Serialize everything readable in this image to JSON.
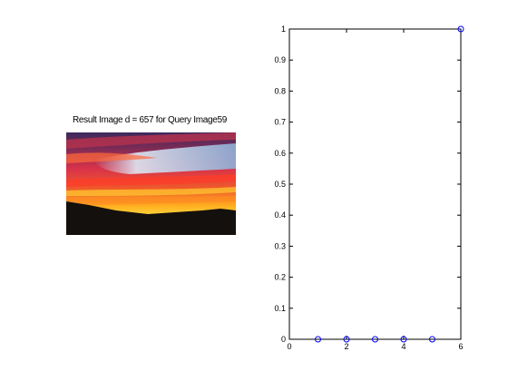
{
  "image_panel": {
    "title": "Result Image d = 657 for Query Image59",
    "image_icon": "sunset-photo"
  },
  "chart_data": {
    "type": "scatter",
    "x": [
      1,
      2,
      3,
      4,
      5,
      6
    ],
    "y": [
      0,
      0,
      0,
      0,
      0,
      1
    ],
    "xlim": [
      0,
      6
    ],
    "ylim": [
      0,
      1
    ],
    "xticks": [
      0,
      2,
      4,
      6
    ],
    "yticks": [
      0,
      0.1,
      0.2,
      0.3,
      0.4,
      0.5,
      0.6,
      0.7,
      0.8,
      0.9,
      1
    ],
    "marker": "circle",
    "marker_color": "#0000ff",
    "grid": false,
    "title": "",
    "xlabel": "",
    "ylabel": ""
  }
}
